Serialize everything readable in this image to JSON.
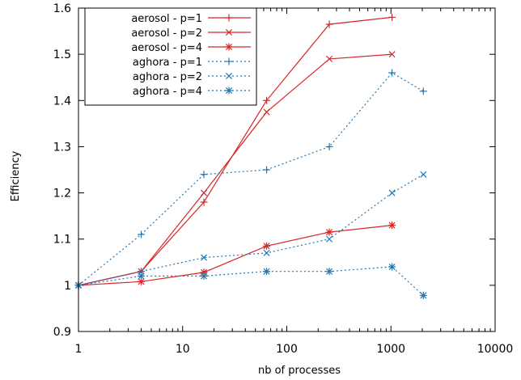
{
  "chart_data": {
    "type": "line",
    "title": "",
    "xlabel": "nb of processes",
    "ylabel": "Efficiency",
    "xscale": "log",
    "xlim": [
      1,
      10000
    ],
    "ylim": [
      0.9,
      1.6
    ],
    "xticks": [
      1,
      10,
      100,
      1000,
      10000
    ],
    "xtick_labels": [
      "1",
      "10",
      "100",
      "1000",
      "10000"
    ],
    "yticks": [
      0.9,
      1.0,
      1.1,
      1.2,
      1.3,
      1.4,
      1.5,
      1.6
    ],
    "ytick_labels": [
      "0.9",
      "1",
      "1.1",
      "1.2",
      "1.3",
      "1.4",
      "1.5",
      "1.6"
    ],
    "grid": false,
    "legend_position": "top-left",
    "series": [
      {
        "name": "aerosol - p=1",
        "color": "#d62728",
        "dash": "solid",
        "marker": "plus",
        "x": [
          1,
          4,
          16,
          64,
          256,
          1024
        ],
        "y": [
          1.0,
          1.03,
          1.18,
          1.4,
          1.565,
          1.58
        ]
      },
      {
        "name": "aerosol - p=2",
        "color": "#d62728",
        "dash": "solid",
        "marker": "cross",
        "x": [
          1,
          4,
          16,
          64,
          256,
          1024
        ],
        "y": [
          1.0,
          1.03,
          1.2,
          1.375,
          1.49,
          1.5
        ]
      },
      {
        "name": "aerosol - p=4",
        "color": "#d62728",
        "dash": "solid",
        "marker": "star",
        "x": [
          1,
          4,
          16,
          64,
          256,
          1024
        ],
        "y": [
          1.0,
          1.008,
          1.028,
          1.085,
          1.115,
          1.13
        ]
      },
      {
        "name": "aghora - p=1",
        "color": "#1f77b4",
        "dash": "dotted",
        "marker": "plus",
        "x": [
          1,
          4,
          16,
          64,
          256,
          1024,
          2048
        ],
        "y": [
          1.0,
          1.11,
          1.24,
          1.25,
          1.3,
          1.46,
          1.42
        ]
      },
      {
        "name": "aghora - p=2",
        "color": "#1f77b4",
        "dash": "dotted",
        "marker": "cross",
        "x": [
          1,
          4,
          16,
          64,
          256,
          1024,
          2048
        ],
        "y": [
          1.0,
          1.03,
          1.06,
          1.07,
          1.1,
          1.2,
          1.24
        ]
      },
      {
        "name": "aghora - p=4",
        "color": "#1f77b4",
        "dash": "dotted",
        "marker": "star",
        "x": [
          1,
          4,
          16,
          64,
          256,
          1024,
          2048
        ],
        "y": [
          1.0,
          1.02,
          1.02,
          1.03,
          1.03,
          1.04,
          0.978
        ]
      }
    ]
  }
}
